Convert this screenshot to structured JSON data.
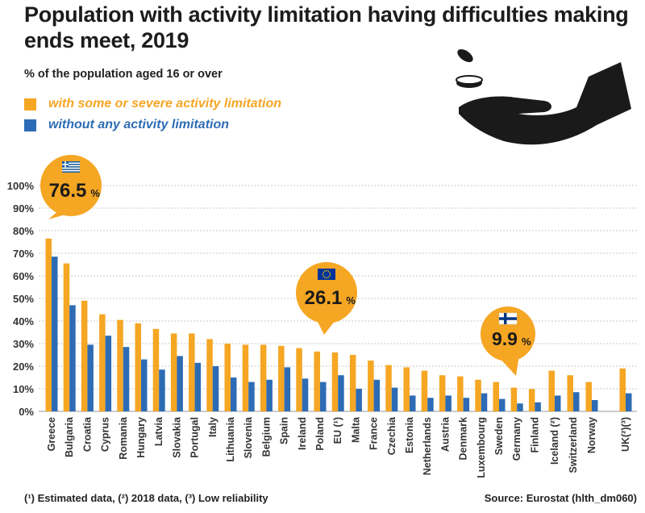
{
  "title": "Population with activity limitation having difficulties making ends meet, 2019",
  "subtitle": "% of the population aged 16 or over",
  "legend": [
    {
      "label": "with some or severe activity limitation",
      "color": "#f5a623"
    },
    {
      "label": "without any activity limitation",
      "color": "#2d6cb5"
    }
  ],
  "footnote": "(¹) Estimated data, (²) 2018 data, (³) Low reliability",
  "source": "Source: Eurostat (hlth_dm060)",
  "callouts": [
    {
      "country": "Greece",
      "value": "76.5",
      "unit": "%",
      "flag": "greece-flag"
    },
    {
      "country": "EU (¹)",
      "value": "26.1",
      "unit": "%",
      "flag": "eu-flag"
    },
    {
      "country": "Finland",
      "value": "9.9",
      "unit": "%",
      "flag": "finland-flag"
    }
  ],
  "chart_data": {
    "type": "bar",
    "ylim": [
      0,
      100
    ],
    "yticks": [
      "0%",
      "10%",
      "20%",
      "30%",
      "40%",
      "50%",
      "60%",
      "70%",
      "80%",
      "90%",
      "100%"
    ],
    "categories": [
      "Greece",
      "Bulgaria",
      "Croatia",
      "Cyprus",
      "Romania",
      "Hungary",
      "Latvia",
      "Slovakia",
      "Portugal",
      "Italy",
      "Lithuania",
      "Slovenia",
      "Belgium",
      "Spain",
      "Ireland",
      "Poland",
      "EU (¹)",
      "Malta",
      "France",
      "Czechia",
      "Estonia",
      "Netherlands",
      "Austria",
      "Denmark",
      "Luxembourg",
      "Sweden",
      "Germany",
      "Finland",
      "Iceland (²)",
      "Switzerland",
      "Norway",
      "UK(²)(³)"
    ],
    "series": [
      {
        "name": "with some or severe activity limitation",
        "color": "#f5a623",
        "values": [
          76.5,
          65.5,
          49.0,
          43.0,
          40.5,
          39.0,
          36.5,
          34.5,
          34.5,
          32.0,
          30.0,
          29.5,
          29.5,
          29.0,
          28.0,
          26.5,
          26.1,
          25.0,
          22.5,
          20.5,
          19.5,
          18.0,
          16.0,
          15.5,
          14.0,
          13.0,
          10.5,
          9.9,
          18.0,
          16.0,
          13.0,
          19.0
        ]
      },
      {
        "name": "without any activity limitation",
        "color": "#2d6cb5",
        "values": [
          68.5,
          47.0,
          29.5,
          33.5,
          28.5,
          23.0,
          18.5,
          24.5,
          21.5,
          20.0,
          15.0,
          13.0,
          14.0,
          19.5,
          14.5,
          13.0,
          16.0,
          10.0,
          14.0,
          10.5,
          7.0,
          6.0,
          7.0,
          6.0,
          8.0,
          5.5,
          3.5,
          4.0,
          7.0,
          8.5,
          5.0,
          8.0
        ]
      }
    ]
  }
}
